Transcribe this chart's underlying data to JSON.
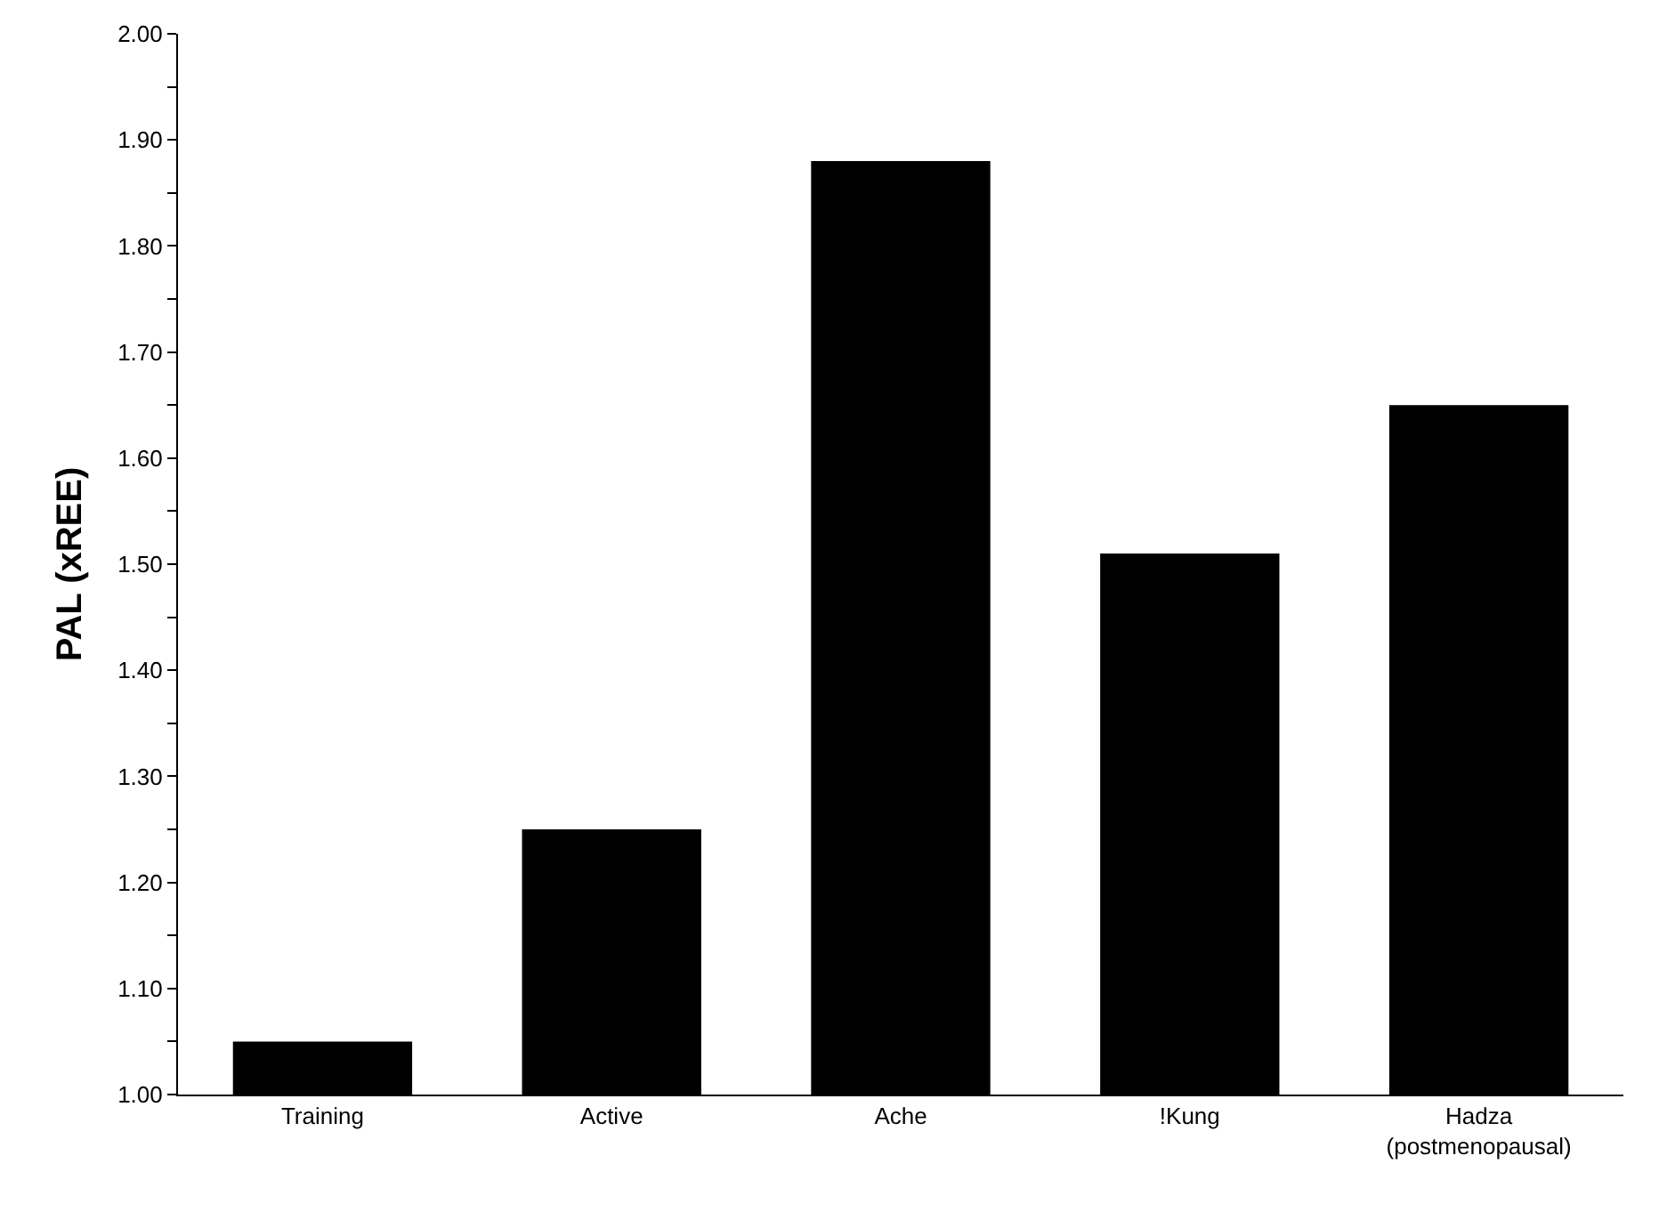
{
  "chart_data": {
    "type": "bar",
    "ylabel": "PAL (xREE)",
    "categories": [
      "Training",
      "Active",
      "Ache",
      "!Kung",
      "Hadza\n(postmenopausal)"
    ],
    "values": [
      1.05,
      1.25,
      1.88,
      1.51,
      1.65
    ],
    "color": "#000000",
    "ylim": [
      1.0,
      2.0
    ],
    "yticks": [
      {
        "value": 1.0,
        "label": "1.00"
      },
      {
        "value": 1.05,
        "label": null
      },
      {
        "value": 1.1,
        "label": "1.10"
      },
      {
        "value": 1.15,
        "label": null
      },
      {
        "value": 1.2,
        "label": "1.20"
      },
      {
        "value": 1.25,
        "label": null
      },
      {
        "value": 1.3,
        "label": "1.30"
      },
      {
        "value": 1.35,
        "label": null
      },
      {
        "value": 1.4,
        "label": "1.40"
      },
      {
        "value": 1.45,
        "label": null
      },
      {
        "value": 1.5,
        "label": "1.50"
      },
      {
        "value": 1.55,
        "label": null
      },
      {
        "value": 1.6,
        "label": "1.60"
      },
      {
        "value": 1.65,
        "label": null
      },
      {
        "value": 1.7,
        "label": "1.70"
      },
      {
        "value": 1.75,
        "label": null
      },
      {
        "value": 1.8,
        "label": "1.80"
      },
      {
        "value": 1.85,
        "label": null
      },
      {
        "value": 1.9,
        "label": "1.90"
      },
      {
        "value": 1.95,
        "label": null
      },
      {
        "value": 2.0,
        "label": "2.00"
      }
    ],
    "orientation": "vertical"
  }
}
